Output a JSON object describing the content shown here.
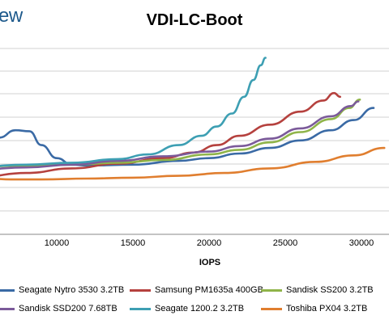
{
  "brand": {
    "text": "ew"
  },
  "chart_data": {
    "type": "line",
    "title": "VDI-LC-Boot",
    "xlabel": "IOPS",
    "ylabel": "",
    "x_ticks": [
      10000,
      15000,
      20000,
      25000,
      30000
    ],
    "xlim": [
      5000,
      31500
    ],
    "ylim": [
      0,
      10
    ],
    "grid": true,
    "legend_position": "bottom",
    "series": [
      {
        "name": "Seagate Nytro 3530 3.2TB",
        "color": "#3a6aa5",
        "points": [
          [
            5000,
            4.8
          ],
          [
            6200,
            5.2
          ],
          [
            7300,
            5.6
          ],
          [
            8200,
            5.55
          ],
          [
            9000,
            4.8
          ],
          [
            10000,
            4.1
          ],
          [
            11000,
            3.75
          ],
          [
            12000,
            3.7
          ],
          [
            15000,
            3.75
          ],
          [
            18000,
            3.95
          ],
          [
            20000,
            4.1
          ],
          [
            22000,
            4.35
          ],
          [
            24000,
            4.65
          ],
          [
            26000,
            5.05
          ],
          [
            28000,
            5.6
          ],
          [
            29500,
            6.15
          ],
          [
            30800,
            6.8
          ]
        ]
      },
      {
        "name": "Samsung PM1635a 400GB",
        "color": "#b5413e",
        "points": [
          [
            5000,
            3.1
          ],
          [
            8000,
            3.3
          ],
          [
            11000,
            3.55
          ],
          [
            14000,
            3.8
          ],
          [
            17000,
            4.1
          ],
          [
            19000,
            4.4
          ],
          [
            20500,
            4.8
          ],
          [
            22000,
            5.3
          ],
          [
            24000,
            5.9
          ],
          [
            26000,
            6.6
          ],
          [
            27500,
            7.2
          ],
          [
            28200,
            7.6
          ],
          [
            28600,
            7.4
          ]
        ]
      },
      {
        "name": "Sandisk SS200 3.2TB",
        "color": "#8fb449",
        "points": [
          [
            5000,
            3.65
          ],
          [
            8000,
            3.7
          ],
          [
            11000,
            3.75
          ],
          [
            14000,
            3.85
          ],
          [
            17000,
            4.0
          ],
          [
            20000,
            4.3
          ],
          [
            22000,
            4.55
          ],
          [
            24000,
            4.95
          ],
          [
            26000,
            5.5
          ],
          [
            28000,
            6.2
          ],
          [
            29200,
            6.8
          ],
          [
            29900,
            7.25
          ]
        ]
      },
      {
        "name": "Sandisk SSD200 7.68TB",
        "color": "#7b5a9a",
        "points": [
          [
            5000,
            3.5
          ],
          [
            8000,
            3.6
          ],
          [
            11000,
            3.75
          ],
          [
            14000,
            3.95
          ],
          [
            17000,
            4.2
          ],
          [
            20000,
            4.45
          ],
          [
            22000,
            4.75
          ],
          [
            24000,
            5.15
          ],
          [
            26000,
            5.7
          ],
          [
            28000,
            6.35
          ],
          [
            29300,
            6.9
          ],
          [
            29800,
            7.15
          ]
        ]
      },
      {
        "name": "Seagate 1200.2 3.2TB",
        "color": "#3d9fb3",
        "points": [
          [
            5000,
            3.65
          ],
          [
            8000,
            3.75
          ],
          [
            11000,
            3.85
          ],
          [
            14000,
            4.05
          ],
          [
            16000,
            4.3
          ],
          [
            18000,
            4.8
          ],
          [
            19500,
            5.3
          ],
          [
            20500,
            5.8
          ],
          [
            21500,
            6.5
          ],
          [
            22300,
            7.4
          ],
          [
            22900,
            8.3
          ],
          [
            23400,
            9.1
          ],
          [
            23700,
            9.5
          ]
        ]
      },
      {
        "name": "Toshiba PX04 3.2TB",
        "color": "#e07e2f",
        "points": [
          [
            5000,
            3.05
          ],
          [
            7000,
            2.95
          ],
          [
            9000,
            2.95
          ],
          [
            12000,
            3.0
          ],
          [
            15000,
            3.05
          ],
          [
            18000,
            3.15
          ],
          [
            21000,
            3.3
          ],
          [
            24000,
            3.55
          ],
          [
            27000,
            3.9
          ],
          [
            29500,
            4.25
          ],
          [
            31500,
            4.65
          ]
        ]
      }
    ]
  }
}
